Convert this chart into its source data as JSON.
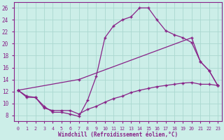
{
  "line1_x": [
    0,
    1,
    2,
    3,
    4,
    5,
    6,
    7,
    8,
    9,
    10,
    11,
    12,
    13,
    14,
    15,
    16,
    17,
    18,
    19,
    20,
    21,
    22,
    23
  ],
  "line1_y": [
    12.2,
    11.2,
    11.0,
    9.5,
    8.5,
    8.5,
    8.2,
    7.8,
    10.5,
    14.5,
    21.0,
    23.0,
    24.0,
    24.5,
    26.0,
    26.0,
    24.0,
    22.2,
    21.5,
    21.0,
    20.2,
    17.0,
    15.5,
    13.0
  ],
  "line2_x": [
    0,
    7,
    20,
    21,
    22,
    23
  ],
  "line2_y": [
    12.2,
    14.0,
    21.0,
    17.0,
    15.5,
    13.0
  ],
  "line3_x": [
    0,
    1,
    2,
    3,
    4,
    5,
    6,
    7,
    8,
    9,
    10,
    11,
    12,
    13,
    14,
    15,
    16,
    17,
    18,
    19,
    20,
    21,
    22,
    23
  ],
  "line3_y": [
    12.2,
    11.0,
    11.0,
    9.2,
    8.8,
    8.8,
    8.8,
    8.2,
    9.0,
    9.5,
    10.2,
    10.8,
    11.2,
    11.8,
    12.2,
    12.5,
    12.8,
    13.0,
    13.2,
    13.4,
    13.5,
    13.2,
    13.2,
    13.0
  ],
  "color": "#882288",
  "bg_color": "#cceee8",
  "grid_color": "#aad8d0",
  "xlabel": "Windchill (Refroidissement éolien,°C)",
  "ylim": [
    7,
    27
  ],
  "xlim_min": -0.5,
  "xlim_max": 23.5,
  "yticks": [
    8,
    10,
    12,
    14,
    16,
    18,
    20,
    22,
    24,
    26
  ],
  "xticks": [
    0,
    1,
    2,
    3,
    4,
    5,
    6,
    7,
    8,
    9,
    10,
    11,
    12,
    13,
    14,
    15,
    16,
    17,
    18,
    19,
    20,
    21,
    22,
    23
  ]
}
